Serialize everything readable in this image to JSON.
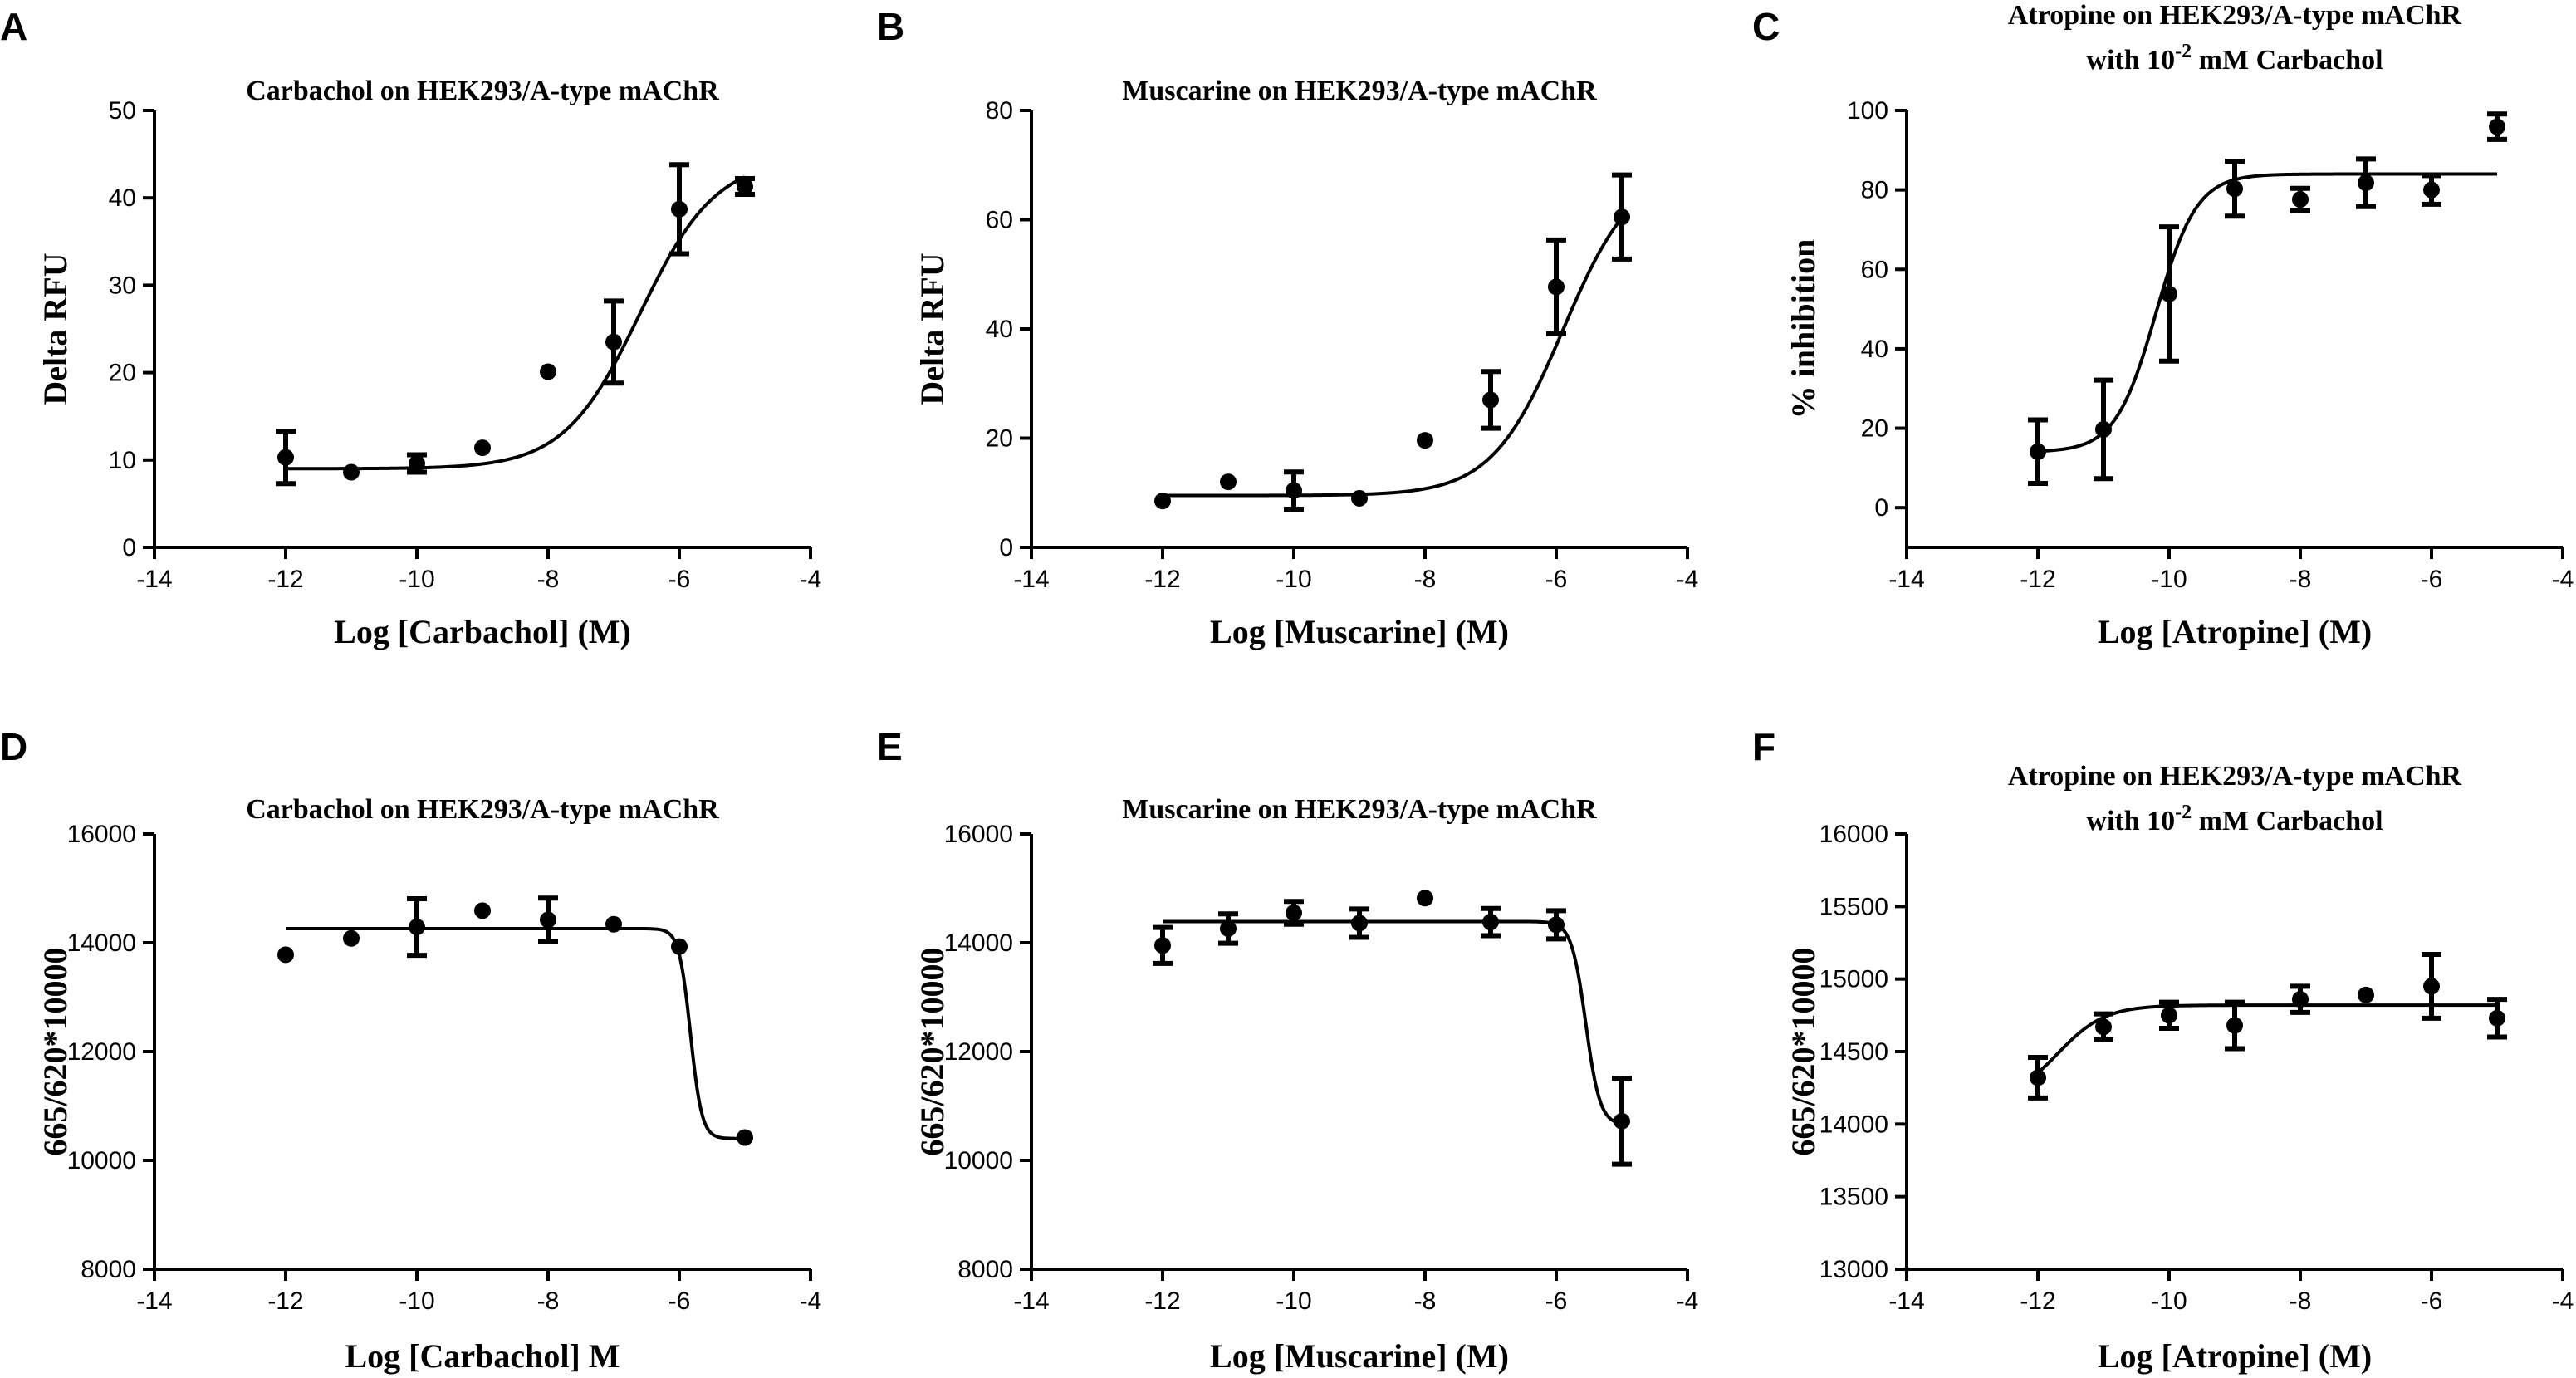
{
  "figure": {
    "colors": {
      "ink": "#000000",
      "background": "#ffffff"
    }
  },
  "chart_data": [
    {
      "panel": "A",
      "type": "scatter",
      "title": [
        "Carbachol on HEK293/A-type mAChR"
      ],
      "xlabel": "Log [Carbachol] (M)",
      "ylabel": "Delta RFU",
      "xlim": [
        -14,
        -4
      ],
      "ylim": [
        0,
        50
      ],
      "xticks": [
        -14,
        -12,
        -10,
        -8,
        -6,
        -4
      ],
      "yticks": [
        0,
        10,
        20,
        30,
        40,
        50
      ],
      "points": [
        {
          "x": -12,
          "y": 10.3,
          "err": 3.0
        },
        {
          "x": -11,
          "y": 8.6,
          "err": 0
        },
        {
          "x": -10,
          "y": 9.6,
          "err": 1.0
        },
        {
          "x": -9,
          "y": 11.4,
          "err": 0
        },
        {
          "x": -8,
          "y": 20.1,
          "err": 0
        },
        {
          "x": -7,
          "y": 23.5,
          "err": 4.7
        },
        {
          "x": -6,
          "y": 38.7,
          "err": 5.1
        },
        {
          "x": -5,
          "y": 41.3,
          "err": 0.9
        }
      ],
      "fit": {
        "bottom": 9.0,
        "top": 44.5,
        "logEC50": -6.6,
        "hill": 0.75
      }
    },
    {
      "panel": "B",
      "type": "scatter",
      "title": [
        "Muscarine on HEK293/A-type mAChR"
      ],
      "xlabel": "Log [Muscarine] (M)",
      "ylabel": "Delta RFU",
      "xlim": [
        -14,
        -4
      ],
      "ylim": [
        0,
        80
      ],
      "xticks": [
        -14,
        -12,
        -10,
        -8,
        -6,
        -4
      ],
      "yticks": [
        0,
        20,
        40,
        60,
        80
      ],
      "points": [
        {
          "x": -12,
          "y": 8.5,
          "err": 0
        },
        {
          "x": -11,
          "y": 12.0,
          "err": 0
        },
        {
          "x": -10,
          "y": 10.4,
          "err": 3.4
        },
        {
          "x": -9,
          "y": 9.0,
          "err": 0
        },
        {
          "x": -8,
          "y": 19.6,
          "err": 0
        },
        {
          "x": -7,
          "y": 27.0,
          "err": 5.2
        },
        {
          "x": -6,
          "y": 47.7,
          "err": 8.6
        },
        {
          "x": -5,
          "y": 60.5,
          "err": 7.7
        }
      ],
      "fit": {
        "bottom": 9.5,
        "top": 70.0,
        "logEC50": -5.9,
        "hill": 0.8
      }
    },
    {
      "panel": "C",
      "type": "scatter",
      "title": [
        "Atropine on HEK293/A-type mAChR",
        "with 10",
        "-2",
        " mM Carbachol"
      ],
      "xlabel": "Log [Atropine] (M)",
      "ylabel": "% inhibition",
      "xlim": [
        -14,
        -4
      ],
      "ylim": [
        -10,
        100
      ],
      "xticks": [
        -14,
        -12,
        -10,
        -8,
        -6,
        -4
      ],
      "yticks": [
        0,
        20,
        40,
        60,
        80,
        100
      ],
      "points": [
        {
          "x": -12,
          "y": 14.1,
          "err": 8.0
        },
        {
          "x": -11,
          "y": 19.7,
          "err": 12.4
        },
        {
          "x": -10,
          "y": 53.8,
          "err": 16.9
        },
        {
          "x": -9,
          "y": 80.3,
          "err": 6.9
        },
        {
          "x": -8,
          "y": 77.6,
          "err": 2.8
        },
        {
          "x": -7,
          "y": 81.8,
          "err": 6.0
        },
        {
          "x": -6,
          "y": 80.0,
          "err": 3.6
        },
        {
          "x": -5,
          "y": 95.9,
          "err": 3.2
        }
      ],
      "fit": {
        "bottom": 14.0,
        "top": 84.0,
        "logEC50": -10.2,
        "hill": 1.4,
        "xmax": -5.0
      }
    },
    {
      "panel": "D",
      "type": "scatter",
      "title": [
        "Carbachol on HEK293/A-type mAChR"
      ],
      "xlabel": "Log [Carbachol] M",
      "ylabel": "665/620*10000",
      "xlim": [
        -14,
        -4
      ],
      "ylim": [
        8000,
        16000
      ],
      "xticks": [
        -14,
        -12,
        -10,
        -8,
        -6,
        -4
      ],
      "yticks": [
        8000,
        10000,
        12000,
        14000,
        16000
      ],
      "points": [
        {
          "x": -12,
          "y": 13780,
          "err": 0
        },
        {
          "x": -11,
          "y": 14080,
          "err": 0
        },
        {
          "x": -10,
          "y": 14290,
          "err": 520
        },
        {
          "x": -9,
          "y": 14590,
          "err": 0
        },
        {
          "x": -8,
          "y": 14420,
          "err": 400
        },
        {
          "x": -7,
          "y": 14340,
          "err": 0
        },
        {
          "x": -6,
          "y": 13930,
          "err": 0
        },
        {
          "x": -5,
          "y": 10420,
          "err": 0
        }
      ],
      "fit": {
        "bottom": 10400,
        "top": 14260,
        "logEC50": -5.83,
        "hill": -5.0
      }
    },
    {
      "panel": "E",
      "type": "scatter",
      "title": [
        "Muscarine on HEK293/A-type mAChR"
      ],
      "xlabel": "Log [Muscarine] (M)",
      "ylabel": "665/620*10000",
      "xlim": [
        -14,
        -4
      ],
      "ylim": [
        8000,
        16000
      ],
      "xticks": [
        -14,
        -12,
        -10,
        -8,
        -6,
        -4
      ],
      "yticks": [
        8000,
        10000,
        12000,
        14000,
        16000
      ],
      "points": [
        {
          "x": -12,
          "y": 13950,
          "err": 330
        },
        {
          "x": -11,
          "y": 14260,
          "err": 270
        },
        {
          "x": -10,
          "y": 14550,
          "err": 210
        },
        {
          "x": -9,
          "y": 14360,
          "err": 260
        },
        {
          "x": -8,
          "y": 14820,
          "err": 0
        },
        {
          "x": -7,
          "y": 14380,
          "err": 250
        },
        {
          "x": -6,
          "y": 14330,
          "err": 260
        },
        {
          "x": -5,
          "y": 10720,
          "err": 790
        }
      ],
      "fit": {
        "bottom": 10650,
        "top": 14390,
        "logEC50": -5.55,
        "hill": -4.0
      }
    },
    {
      "panel": "F",
      "type": "scatter",
      "title": [
        "Atropine on HEK293/A-type mAChR",
        "with 10",
        "-2",
        " mM Carbachol"
      ],
      "xlabel": "Log [Atropine] (M)",
      "ylabel": "665/620*10000",
      "xlim": [
        -14,
        -4
      ],
      "ylim": [
        13000,
        16000
      ],
      "xticks": [
        -14,
        -12,
        -10,
        -8,
        -6,
        -4
      ],
      "yticks": [
        13000,
        13500,
        14000,
        14500,
        15000,
        15500,
        16000
      ],
      "points": [
        {
          "x": -12,
          "y": 14320,
          "err": 140
        },
        {
          "x": -11,
          "y": 14670,
          "err": 90
        },
        {
          "x": -10,
          "y": 14750,
          "err": 90
        },
        {
          "x": -9,
          "y": 14680,
          "err": 160
        },
        {
          "x": -8,
          "y": 14860,
          "err": 90
        },
        {
          "x": -7,
          "y": 14890,
          "err": 0
        },
        {
          "x": -6,
          "y": 14950,
          "err": 220
        },
        {
          "x": -5,
          "y": 14730,
          "err": 130
        }
      ],
      "fit": {
        "bottom": 14150,
        "top": 14820,
        "logEC50": -11.7,
        "hill": 1.2
      }
    }
  ]
}
